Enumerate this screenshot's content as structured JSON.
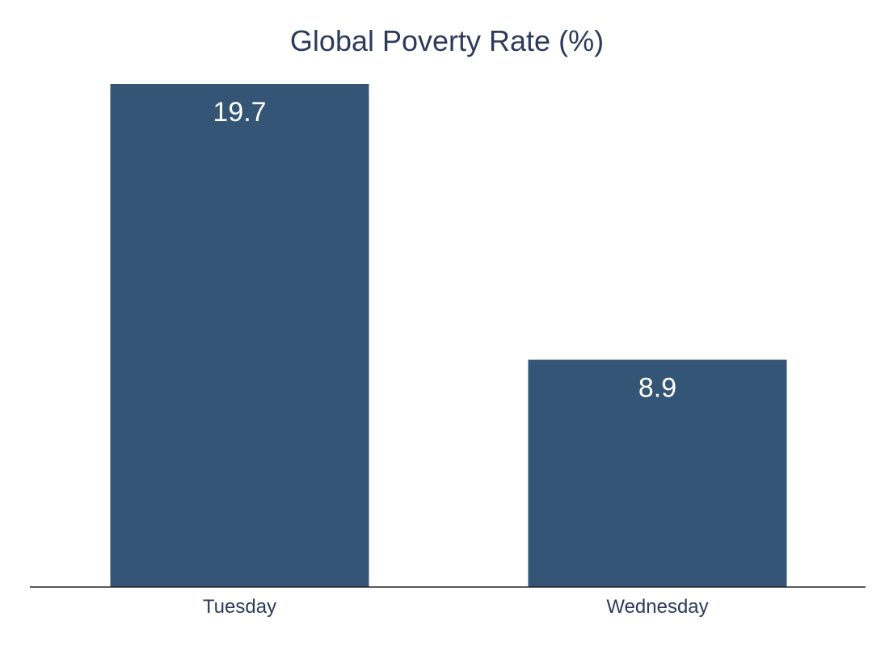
{
  "chart_data": {
    "type": "bar",
    "title": "Global Poverty Rate (%)",
    "xlabel": "",
    "ylabel": "",
    "categories": [
      "Tuesday",
      "Wednesday"
    ],
    "values": [
      19.7,
      8.9
    ],
    "ylim": [
      0,
      19.7
    ],
    "grid": false,
    "legend": "none",
    "colors": {
      "bar": "#345575",
      "label": "#ffffff",
      "title": "#2e3a5a",
      "axis": "#222222"
    }
  }
}
